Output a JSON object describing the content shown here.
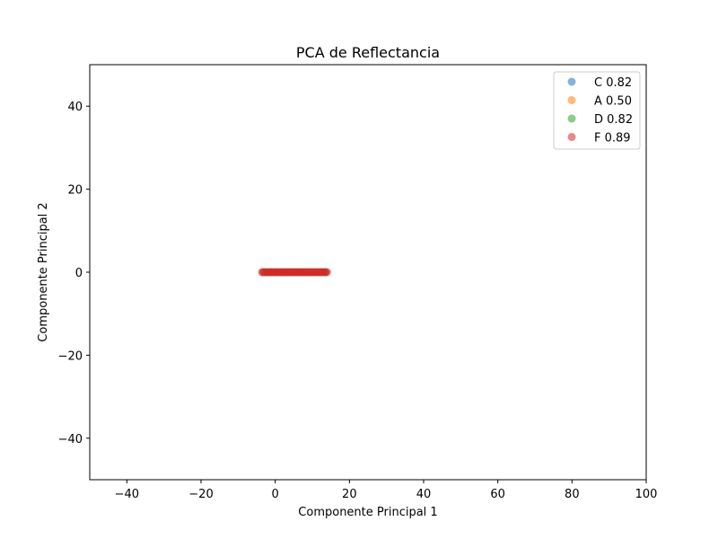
{
  "chart_data": {
    "type": "scatter",
    "title": "PCA de Reflectancia",
    "xlabel": "Componente Principal 1",
    "ylabel": "Componente Principal 2",
    "xlim": [
      -50,
      100
    ],
    "ylim": [
      -50,
      50
    ],
    "xticks": [
      -40,
      -20,
      0,
      20,
      40,
      60,
      80,
      100
    ],
    "yticks": [
      -40,
      -20,
      0,
      20,
      40
    ],
    "grid": false,
    "legend_position": "top-right",
    "series": [
      {
        "name": "C 0.82",
        "color": "#1f77b4",
        "x": [
          -2.5,
          -1,
          0.5,
          2,
          3.5,
          5,
          6.5,
          8,
          9.5,
          11,
          12.5,
          13.5
        ],
        "y": [
          0,
          0,
          0,
          0,
          0,
          0,
          0,
          0,
          0,
          0,
          0,
          0
        ]
      },
      {
        "name": "A 0.50",
        "color": "#ff7f0e",
        "x": [
          -3.5,
          -2,
          -0.5,
          1,
          2.5,
          4,
          5.5,
          7,
          8.5,
          10,
          11.5,
          13
        ],
        "y": [
          0,
          0,
          0,
          0,
          0,
          0,
          0,
          0,
          0,
          0,
          0,
          0
        ]
      },
      {
        "name": "D 0.82",
        "color": "#2ca02c",
        "x": [
          -3,
          -1.5,
          0,
          1.5,
          3,
          4.5,
          6,
          7.5,
          9,
          10.5,
          12,
          13.5
        ],
        "y": [
          0,
          0,
          0,
          0,
          0,
          0,
          0,
          0,
          0,
          0,
          0,
          0
        ]
      },
      {
        "name": "F 0.89",
        "color": "#d62728",
        "x": [
          -3.5,
          -3,
          -2.5,
          -2,
          -1.5,
          -1,
          -0.5,
          0,
          0.5,
          1,
          1.5,
          2,
          2.5,
          3,
          3.5,
          4,
          4.5,
          5,
          5.5,
          6,
          6.5,
          7,
          7.5,
          8,
          8.5,
          9,
          9.5,
          10,
          10.5,
          11,
          11.5,
          12,
          12.5,
          13,
          13.5,
          14
        ],
        "y": [
          0,
          0,
          0,
          0,
          0,
          0,
          0,
          0,
          0,
          0,
          0,
          0,
          0,
          0,
          0,
          0,
          0,
          0,
          0,
          0,
          0,
          0,
          0,
          0,
          0,
          0,
          0,
          0,
          0,
          0,
          0,
          0,
          0,
          0,
          0,
          0
        ]
      }
    ]
  }
}
